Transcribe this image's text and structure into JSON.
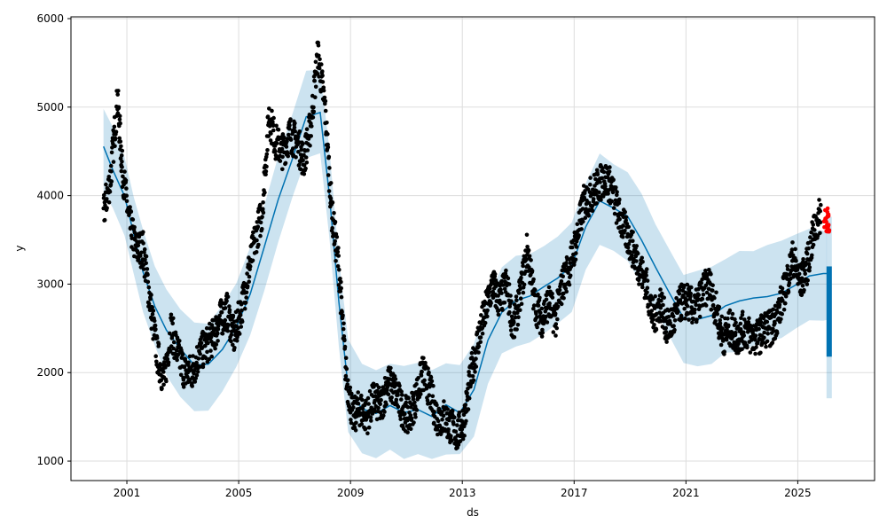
{
  "chart_data": {
    "type": "line",
    "title": "",
    "xlabel": "ds",
    "ylabel": "y",
    "xlim": [
      "1999-01-01",
      "2027-10-01"
    ],
    "ylim": [
      780,
      6020
    ],
    "grid": true,
    "x_ticks": [
      "2001",
      "2005",
      "2009",
      "2013",
      "2017",
      "2021",
      "2025"
    ],
    "y_ticks": [
      1000,
      2000,
      3000,
      4000,
      5000,
      6000
    ],
    "colors": {
      "observed": "#000000",
      "forecast_line": "#0072B2",
      "uncertainty_band": "#0072B2",
      "recent_observed": "#ff0000",
      "grid": "#dddddd"
    },
    "series": [
      {
        "kind": "forecast",
        "x": [
          "2000-03-01",
          "2000-07-01",
          "2000-12-01",
          "2001-04-01",
          "2001-08-01",
          "2002-01-01",
          "2002-06-01",
          "2002-12-01",
          "2003-06-01",
          "2003-12-01",
          "2004-06-01",
          "2004-12-01",
          "2005-06-01",
          "2005-12-01",
          "2006-06-01",
          "2006-12-01",
          "2007-06-01",
          "2007-12-01",
          "2008-04-01",
          "2008-08-01",
          "2008-12-01",
          "2009-06-01",
          "2009-12-01",
          "2010-06-01",
          "2010-12-01",
          "2011-06-01",
          "2011-12-01",
          "2012-06-01",
          "2012-12-01",
          "2013-06-01",
          "2013-12-01",
          "2014-06-01",
          "2014-12-01",
          "2015-06-01",
          "2015-12-01",
          "2016-06-01",
          "2016-12-01",
          "2017-06-01",
          "2017-12-01",
          "2018-06-01",
          "2018-12-01",
          "2019-06-01",
          "2019-12-01",
          "2020-06-01",
          "2020-12-01",
          "2021-06-01",
          "2021-12-01",
          "2022-06-01",
          "2022-12-01",
          "2023-06-01",
          "2023-12-01",
          "2024-06-01",
          "2024-12-01",
          "2025-06-01",
          "2025-12-01",
          "2026-01-15"
        ],
        "yhat": [
          4540,
          4300,
          4000,
          3550,
          3150,
          2750,
          2500,
          2250,
          2080,
          2080,
          2280,
          2500,
          2900,
          3400,
          3950,
          4400,
          4900,
          4950,
          4000,
          2800,
          1850,
          1580,
          1530,
          1620,
          1550,
          1600,
          1520,
          1620,
          1560,
          1800,
          2350,
          2700,
          2800,
          2850,
          2950,
          3050,
          3200,
          3650,
          3950,
          3850,
          3750,
          3500,
          3200,
          2900,
          2600,
          2600,
          2650,
          2750,
          2800,
          2850,
          2850,
          2900,
          3000,
          3100,
          3100,
          3100
        ],
        "yhat_lower": [
          4050,
          3850,
          3550,
          3100,
          2700,
          2300,
          2000,
          1750,
          1580,
          1600,
          1800,
          2050,
          2400,
          2900,
          3450,
          3950,
          4400,
          4500,
          3500,
          2300,
          1350,
          1080,
          1050,
          1100,
          1050,
          1100,
          1030,
          1100,
          1060,
          1300,
          1850,
          2200,
          2300,
          2350,
          2450,
          2550,
          2700,
          3150,
          3450,
          3350,
          3250,
          3000,
          2700,
          2400,
          2100,
          2050,
          2100,
          2200,
          2250,
          2300,
          2350,
          2400,
          2500,
          2600,
          2600,
          2600
        ],
        "yhat_upper": [
          5010,
          4750,
          4450,
          4000,
          3600,
          3200,
          2950,
          2700,
          2550,
          2550,
          2750,
          3000,
          3400,
          3900,
          4450,
          4900,
          5400,
          5450,
          4500,
          3300,
          2350,
          2080,
          2050,
          2100,
          2050,
          2100,
          2020,
          2100,
          2060,
          2300,
          2850,
          3200,
          3300,
          3350,
          3450,
          3550,
          3700,
          4150,
          4450,
          4350,
          4250,
          4000,
          3700,
          3400,
          3100,
          3150,
          3200,
          3300,
          3350,
          3400,
          3450,
          3500,
          3550,
          3600,
          3600,
          3600
        ]
      },
      {
        "kind": "forecast_horizon",
        "x": "2026-02-15",
        "yhat_range": [
          2180,
          3200
        ],
        "band_range": [
          1710,
          3760
        ]
      },
      {
        "kind": "observed",
        "x": [
          "2000-03-01",
          "2000-06-01",
          "2000-09-01",
          "2000-11-01",
          "2001-02-01",
          "2001-05-01",
          "2001-08-01",
          "2001-11-01",
          "2002-02-01",
          "2002-05-01",
          "2002-08-01",
          "2002-11-01",
          "2003-02-01",
          "2003-05-01",
          "2003-08-01",
          "2003-11-01",
          "2004-02-01",
          "2004-05-01",
          "2004-08-01",
          "2004-11-01",
          "2005-02-01",
          "2005-05-01",
          "2005-08-01",
          "2005-11-01",
          "2006-02-01",
          "2006-05-01",
          "2006-08-01",
          "2006-11-01",
          "2007-02-01",
          "2007-05-01",
          "2007-08-01",
          "2007-11-01",
          "2008-02-01",
          "2008-05-01",
          "2008-08-01",
          "2008-11-01",
          "2009-02-01",
          "2009-05-01",
          "2009-08-01",
          "2009-11-01",
          "2010-02-01",
          "2010-05-01",
          "2010-08-01",
          "2010-11-01",
          "2011-02-01",
          "2011-05-01",
          "2011-08-01",
          "2011-11-01",
          "2012-02-01",
          "2012-05-01",
          "2012-08-01",
          "2012-11-01",
          "2013-02-01",
          "2013-05-01",
          "2013-08-01",
          "2013-11-01",
          "2014-02-01",
          "2014-05-01",
          "2014-08-01",
          "2014-11-01",
          "2015-02-01",
          "2015-05-01",
          "2015-08-01",
          "2015-11-01",
          "2016-02-01",
          "2016-05-01",
          "2016-08-01",
          "2016-11-01",
          "2017-02-01",
          "2017-05-01",
          "2017-08-01",
          "2017-11-01",
          "2018-02-01",
          "2018-05-01",
          "2018-08-01",
          "2018-11-01",
          "2019-02-01",
          "2019-05-01",
          "2019-08-01",
          "2019-11-01",
          "2020-02-01",
          "2020-05-01",
          "2020-08-01",
          "2020-11-01",
          "2021-02-01",
          "2021-05-01",
          "2021-08-01",
          "2021-11-01",
          "2022-02-01",
          "2022-05-01",
          "2022-08-01",
          "2022-11-01",
          "2023-02-01",
          "2023-05-01",
          "2023-08-01",
          "2023-11-01",
          "2024-02-01",
          "2024-05-01",
          "2024-08-01",
          "2024-11-01",
          "2025-02-01",
          "2025-05-01",
          "2025-08-01",
          "2025-11-01"
        ],
        "y": [
          3800,
          4200,
          5100,
          4300,
          3700,
          3400,
          3400,
          2800,
          2200,
          1900,
          2500,
          2200,
          2000,
          2000,
          2200,
          2300,
          2400,
          2600,
          2700,
          2400,
          2700,
          3100,
          3500,
          3800,
          4900,
          4600,
          4500,
          4700,
          4600,
          4400,
          4800,
          5600,
          5000,
          3800,
          3200,
          2000,
          1500,
          1600,
          1500,
          1700,
          1600,
          1900,
          1800,
          1600,
          1500,
          1700,
          2000,
          1800,
          1500,
          1500,
          1400,
          1300,
          1500,
          2000,
          2400,
          2700,
          3000,
          2800,
          3000,
          2500,
          2900,
          3400,
          2800,
          2600,
          2800,
          2600,
          3000,
          3200,
          3500,
          3900,
          4000,
          4100,
          4200,
          4100,
          3800,
          3600,
          3400,
          3200,
          3000,
          2600,
          2800,
          2500,
          2600,
          2800,
          2800,
          2700,
          2900,
          3000,
          2700,
          2400,
          2500,
          2400,
          2500,
          2400,
          2400,
          2500,
          2500,
          2700,
          3000,
          3300,
          3000,
          3200,
          3600,
          3800
        ]
      },
      {
        "kind": "recent_observed",
        "x": [
          "2026-01-01",
          "2026-01-15",
          "2026-02-01"
        ],
        "y": [
          3700,
          3800,
          3650
        ]
      }
    ]
  }
}
